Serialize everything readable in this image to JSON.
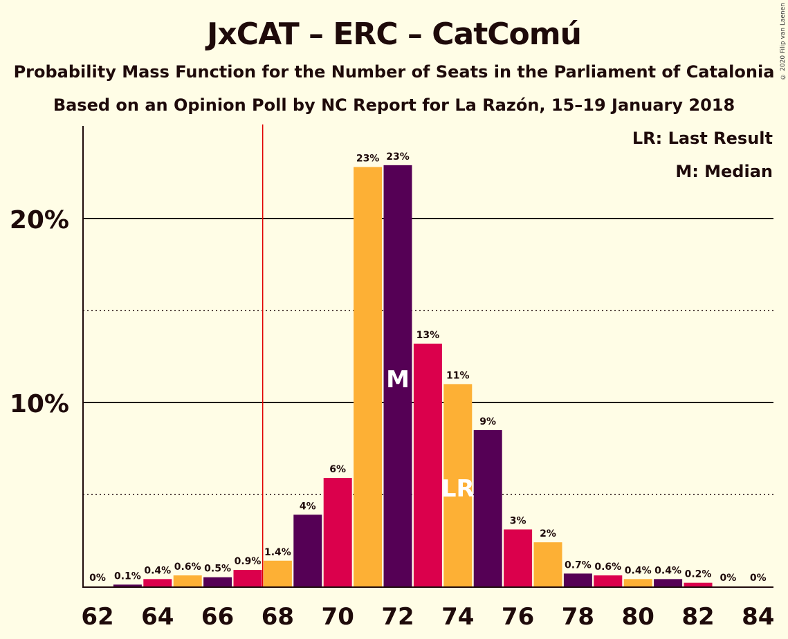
{
  "chart_data": {
    "type": "bar",
    "title": "JxCAT – ERC – CatComú",
    "subtitle": "Probability Mass Function for the Number of Seats in the Parliament of Catalonia",
    "subtitle2": "Based on an Opinion Poll by NC Report for La Razón, 15–19 January 2018",
    "copyright": "© 2020 Filip van Laenen",
    "legend": {
      "placement": "top-right",
      "lr_text": "LR: Last Result",
      "m_text": "M: Median"
    },
    "x": [
      62,
      63,
      64,
      65,
      66,
      67,
      68,
      69,
      70,
      71,
      72,
      73,
      74,
      75,
      76,
      77,
      78,
      79,
      80,
      81,
      82,
      83,
      84
    ],
    "values": [
      0,
      0.1,
      0.4,
      0.6,
      0.5,
      0.9,
      1.4,
      3.9,
      5.9,
      22.8,
      22.9,
      13.2,
      11.0,
      8.5,
      3.1,
      2.4,
      0.7,
      0.6,
      0.4,
      0.4,
      0.2,
      0,
      0
    ],
    "data_labels": [
      "0%",
      "0.1%",
      "0.4%",
      "0.6%",
      "0.5%",
      "0.9%",
      "1.4%",
      "4%",
      "6%",
      "23%",
      "23%",
      "13%",
      "11%",
      "9%",
      "3%",
      "2%",
      "0.7%",
      "0.6%",
      "0.4%",
      "0.4%",
      "0.2%",
      "0%",
      "0%"
    ],
    "x_tick_labels": [
      "62",
      "64",
      "66",
      "68",
      "70",
      "72",
      "74",
      "76",
      "78",
      "80",
      "82",
      "84"
    ],
    "y_tick_labels": [
      "10%",
      "20%"
    ],
    "ylim": [
      0,
      25
    ],
    "grid": "major solid at 10% and 20%, dotted at 5% and 15%",
    "majority_line_x": 67.5,
    "median_seat": 72,
    "median_marker": "M",
    "last_result_seat": 74,
    "last_result_marker": "LR",
    "colors": {
      "background": "#fffde6",
      "jxcat": "#550055",
      "erc": "#db004c",
      "catcomu": "#fdb035",
      "majority_line": "#e00000",
      "text": "#1e0a0a"
    }
  }
}
